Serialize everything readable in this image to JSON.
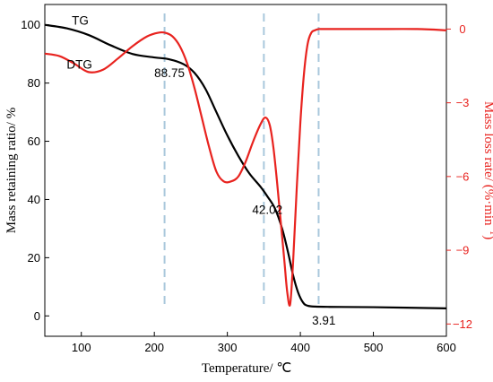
{
  "chart_data": {
    "type": "line",
    "x_axis": {
      "label": "Temperature/ ℃",
      "range": [
        50,
        600
      ],
      "ticks": [
        100,
        200,
        300,
        400,
        500,
        600
      ]
    },
    "y_axis_left": {
      "label": "Mass retaining ratio/ %",
      "range": [
        -7,
        107
      ],
      "ticks": [
        0,
        20,
        40,
        60,
        80,
        100
      ],
      "color": "#000000"
    },
    "y_axis_right": {
      "label_main": "Mass loss rate/ (%·min",
      "label_sup": "−1",
      "label_end": ")",
      "range": [
        -12.5,
        1
      ],
      "ticks": [
        0,
        -3,
        -6,
        -9,
        -12
      ],
      "tick_labels": [
        "0",
        "−3",
        "−6",
        "−9",
        "−12"
      ],
      "color": "#e8231f"
    },
    "series": [
      {
        "name": "TG",
        "axis": "left",
        "color": "#000000",
        "x": [
          50,
          80,
          110,
          140,
          170,
          200,
          220,
          240,
          255,
          270,
          285,
          300,
          315,
          330,
          345,
          355,
          365,
          375,
          383,
          390,
          397,
          404,
          410,
          420,
          440,
          500,
          600
        ],
        "y": [
          100,
          98.8,
          96.5,
          93,
          90,
          88.8,
          88.2,
          86.5,
          83.5,
          78,
          70,
          62,
          55,
          49,
          44.5,
          41,
          37,
          30,
          22,
          14,
          8,
          4.5,
          3.5,
          3.2,
          3.1,
          3.0,
          2.6
        ]
      },
      {
        "name": "DTG",
        "axis": "right",
        "color": "#e8231f",
        "x": [
          50,
          70,
          90,
          110,
          130,
          150,
          170,
          190,
          205,
          215,
          225,
          235,
          245,
          255,
          265,
          275,
          285,
          295,
          305,
          315,
          325,
          335,
          345,
          352,
          358,
          363,
          368,
          373,
          378,
          382,
          386,
          390,
          395,
          400,
          405,
          410,
          415,
          420,
          425,
          430,
          440,
          460,
          500,
          560,
          600
        ],
        "y": [
          -1.0,
          -1.1,
          -1.4,
          -1.75,
          -1.65,
          -1.2,
          -0.7,
          -0.3,
          -0.15,
          -0.15,
          -0.3,
          -0.7,
          -1.4,
          -2.4,
          -3.6,
          -4.8,
          -5.8,
          -6.2,
          -6.2,
          -6.0,
          -5.4,
          -4.6,
          -3.9,
          -3.6,
          -3.9,
          -4.8,
          -6.2,
          -7.8,
          -9.4,
          -10.7,
          -11.2,
          -9.5,
          -6.5,
          -3.8,
          -1.8,
          -0.6,
          -0.15,
          -0.05,
          0.0,
          0.0,
          0.0,
          0.0,
          0.0,
          0.0,
          -0.05
        ]
      }
    ],
    "vlines_x": [
      214,
      350,
      425
    ],
    "annotations": [
      {
        "text": "88.75",
        "x": 200,
        "y": 82
      },
      {
        "text": "42.02",
        "x": 334,
        "y": 35
      },
      {
        "text": "3.91",
        "x": 416,
        "y": -3
      }
    ],
    "legend_labels": [
      {
        "text": "TG",
        "x": 87,
        "y": 100
      },
      {
        "text": "DTG",
        "x": 80,
        "y": 85
      }
    ]
  }
}
